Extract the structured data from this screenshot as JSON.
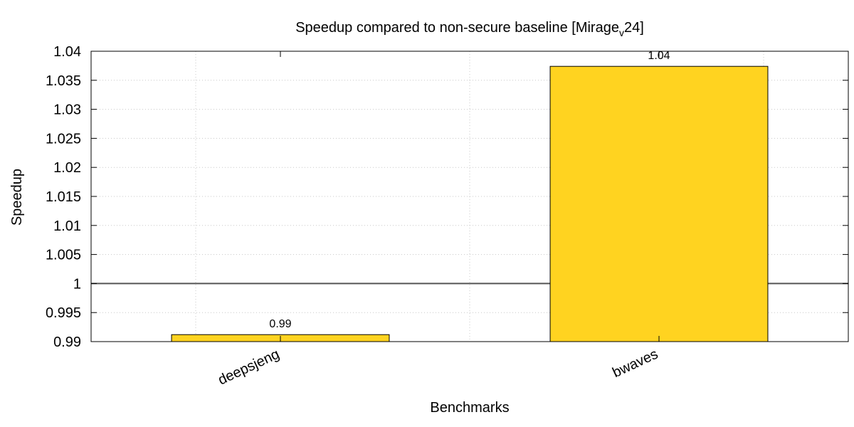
{
  "chart_data": {
    "type": "bar",
    "title_main": "Speedup compared to non-secure baseline [Mirage",
    "title_sub": "v",
    "title_end": "24]",
    "xlabel": "Benchmarks",
    "ylabel": "Speedup",
    "categories": [
      "deepsjeng",
      "bwaves"
    ],
    "values": [
      0.9912,
      1.0374
    ],
    "data_labels": [
      "0.99",
      "1.04"
    ],
    "ylim": [
      0.99,
      1.04
    ],
    "yticks": [
      0.99,
      0.995,
      1,
      1.005,
      1.01,
      1.015,
      1.02,
      1.025,
      1.03,
      1.035,
      1.04
    ],
    "ytick_labels": [
      "0.99",
      "0.995",
      "1",
      "1.005",
      "1.01",
      "1.015",
      "1.02",
      "1.025",
      "1.03",
      "1.035",
      "1.04"
    ],
    "reference_line": 1,
    "grid": true,
    "bar_color": "#ffd320",
    "bar_edge_color": "#000000",
    "grid_color": "#c8c8c8",
    "reference_line_color": "#555555"
  }
}
